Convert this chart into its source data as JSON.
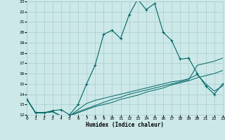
{
  "xlabel": "Humidex (Indice chaleur)",
  "background_color": "#cce8e8",
  "grid_color": "#aacccc",
  "line_color": "#006666",
  "line1_x": [
    0,
    1,
    2,
    3,
    4,
    5,
    6,
    7,
    8,
    9,
    10,
    11,
    12,
    13,
    14,
    15,
    16,
    17,
    18,
    19,
    20,
    21,
    22,
    23
  ],
  "line1_y": [
    13.5,
    12.2,
    12.2,
    12.4,
    12.5,
    12.0,
    13.0,
    15.0,
    16.8,
    19.8,
    20.2,
    19.4,
    21.7,
    23.2,
    22.2,
    22.8,
    20.0,
    19.2,
    17.4,
    17.5,
    16.0,
    14.8,
    14.0,
    15.0
  ],
  "line2_x": [
    0,
    1,
    2,
    3,
    4,
    5,
    6,
    7,
    8,
    9,
    10,
    11,
    12,
    13,
    14,
    15,
    16,
    17,
    18,
    19,
    20,
    21,
    22,
    23
  ],
  "line2_y": [
    13.5,
    12.2,
    12.2,
    12.3,
    11.9,
    11.9,
    12.2,
    12.5,
    12.8,
    13.0,
    13.2,
    13.5,
    13.7,
    13.9,
    14.2,
    14.4,
    14.6,
    14.9,
    15.1,
    15.3,
    15.6,
    15.8,
    16.0,
    16.3
  ],
  "line3_x": [
    0,
    1,
    2,
    3,
    4,
    5,
    6,
    7,
    8,
    9,
    10,
    11,
    12,
    13,
    14,
    15,
    16,
    17,
    18,
    19,
    20,
    21,
    22,
    23
  ],
  "line3_y": [
    13.5,
    12.2,
    12.2,
    12.3,
    11.9,
    11.9,
    12.5,
    13.1,
    13.4,
    13.6,
    13.8,
    14.0,
    14.2,
    14.4,
    14.6,
    14.8,
    15.0,
    15.2,
    15.3,
    15.5,
    15.9,
    15.0,
    14.3,
    14.8
  ],
  "line4_x": [
    0,
    1,
    2,
    3,
    4,
    5,
    6,
    7,
    8,
    9,
    10,
    11,
    12,
    13,
    14,
    15,
    16,
    17,
    18,
    19,
    20,
    21,
    22,
    23
  ],
  "line4_y": [
    13.5,
    12.2,
    12.2,
    12.3,
    11.9,
    11.9,
    12.3,
    12.6,
    12.9,
    13.2,
    13.5,
    13.7,
    14.0,
    14.2,
    14.4,
    14.6,
    14.8,
    15.0,
    15.2,
    15.4,
    16.8,
    17.0,
    17.2,
    17.5
  ],
  "xlim": [
    0,
    23
  ],
  "ylim": [
    12,
    23
  ],
  "yticks": [
    12,
    13,
    14,
    15,
    16,
    17,
    18,
    19,
    20,
    21,
    22,
    23
  ],
  "xticks": [
    0,
    1,
    2,
    3,
    4,
    5,
    6,
    7,
    8,
    9,
    10,
    11,
    12,
    13,
    14,
    15,
    16,
    17,
    18,
    19,
    20,
    21,
    22,
    23
  ]
}
